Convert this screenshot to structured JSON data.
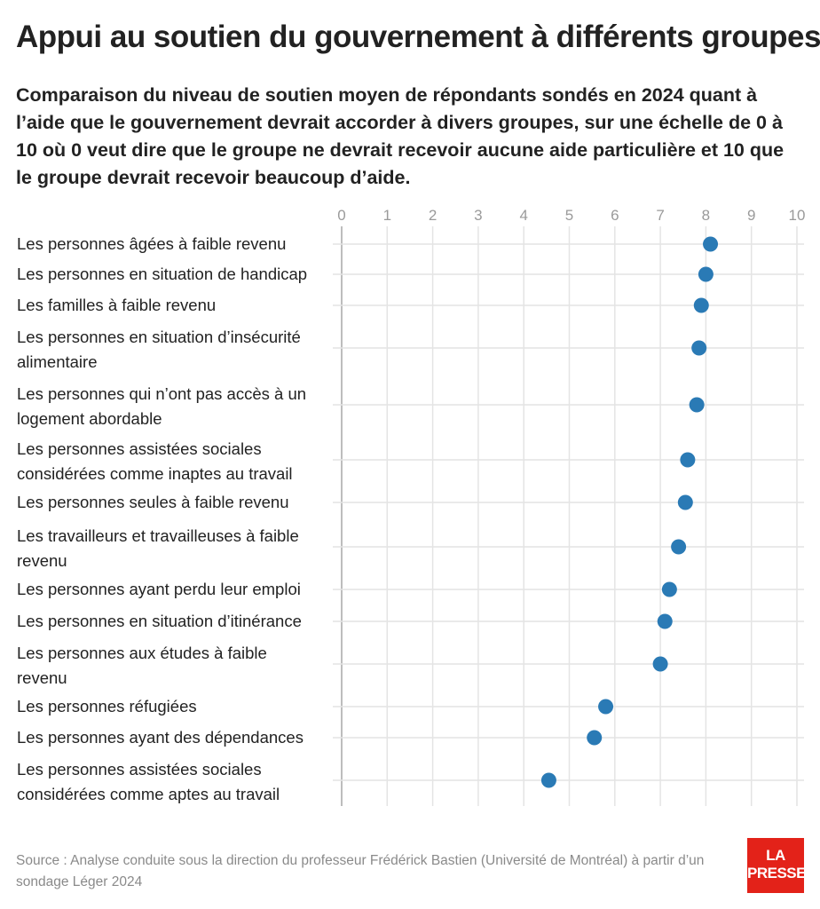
{
  "header": {
    "title": "Appui au soutien du gouvernement à différents groupes",
    "subtitle": "Comparaison du niveau de soutien moyen de répondants sondés en 2024 quant à l’aide que le gouvernement devrait accorder à divers groupes, sur une échelle de 0 à 10 où 0 veut dire que le groupe ne devrait recevoir aucune aide particulière et 10 que le groupe devrait recevoir beaucoup d’aide."
  },
  "footer": {
    "source": "Source : Analyse conduite sous la direction du professeur Frédérick Bastien (Université de Montréal) à partir d’un sondage Léger 2024",
    "logo_line1": "LA",
    "logo_line2": "PRESSE"
  },
  "colors": {
    "dot": "#2a7ab5",
    "grid": "#e4e4e4",
    "axis": "#bdbdbd",
    "tick_text": "#9a9a9a",
    "logo": "#e32219"
  },
  "chart_data": {
    "type": "scatter",
    "orientation": "horizontal-dot",
    "xlim": [
      0,
      10
    ],
    "xticks": [
      "0",
      "1",
      "2",
      "3",
      "4",
      "5",
      "6",
      "7",
      "8",
      "9",
      "10"
    ],
    "grid": true,
    "categories": [
      [
        "Les personnes âgées à faible revenu"
      ],
      [
        "Les personnes en situation de handicap"
      ],
      [
        "Les familles à faible revenu"
      ],
      [
        "Les personnes en situation d’insécurité",
        "alimentaire"
      ],
      [
        "Les personnes qui n’ont pas accès à un",
        "logement abordable"
      ],
      [
        "Les personnes assistées sociales",
        "considérées comme inaptes au travail"
      ],
      [
        "Les personnes seules à faible revenu"
      ],
      [
        "Les travailleurs et travailleuses à faible",
        "revenu"
      ],
      [
        "Les personnes ayant perdu leur emploi"
      ],
      [
        "Les personnes en situation d’itinérance"
      ],
      [
        "Les personnes aux études à faible",
        "revenu"
      ],
      [
        "Les personnes réfugiées"
      ],
      [
        "Les personnes ayant des dépendances"
      ],
      [
        "Les personnes assistées sociales",
        "considérées comme aptes au travail"
      ]
    ],
    "values": [
      8.1,
      8.0,
      7.9,
      7.85,
      7.8,
      7.6,
      7.55,
      7.4,
      7.2,
      7.1,
      7.0,
      5.8,
      5.55,
      4.55
    ]
  }
}
